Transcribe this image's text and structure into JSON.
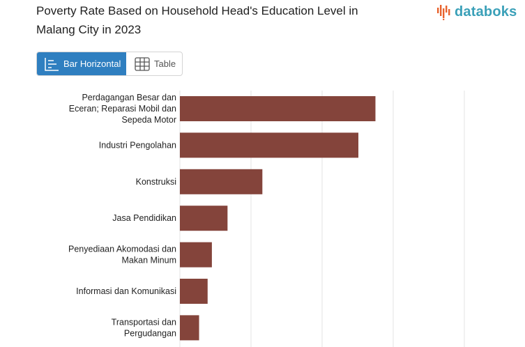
{
  "header": {
    "title": "Poverty Rate Based on Household Head's Education Level in Malang City in 2023",
    "logo_text": "databoks",
    "logo_icon": "databoks-bars-icon"
  },
  "view_toggle": {
    "bar_label": "Bar Horizontal",
    "table_label": "Table",
    "active": "bar"
  },
  "colors": {
    "bar": "#84443b",
    "accent": "#2f7fc0",
    "grid": "#e3e3e3"
  },
  "chart_data": {
    "type": "bar",
    "orientation": "horizontal",
    "categories": [
      "Perdagangan Besar dan Eceran; Reparasi Mobil dan Sepeda Motor",
      "Industri Pengolahan",
      "Konstruksi",
      "Jasa Pendidikan",
      "Penyediaan Akomodasi dan Makan Minum",
      "Informasi dan Komunikasi",
      "Transportasi dan Pergudangan"
    ],
    "category_lines": [
      [
        "Perdagangan Besar dan",
        "Eceran; Reparasi Mobil dan",
        "Sepeda Motor"
      ],
      [
        "Industri Pengolahan"
      ],
      [
        "Konstruksi"
      ],
      [
        "Jasa Pendidikan"
      ],
      [
        "Penyediaan Akomodasi dan",
        "Makan Minum"
      ],
      [
        "Informasi dan Komunikasi"
      ],
      [
        "Transportasi dan",
        "Pergudangan"
      ]
    ],
    "values": [
      27.5,
      25.1,
      11.6,
      6.7,
      4.5,
      3.9,
      2.7
    ],
    "xlim": [
      0,
      40
    ],
    "grid": true
  }
}
